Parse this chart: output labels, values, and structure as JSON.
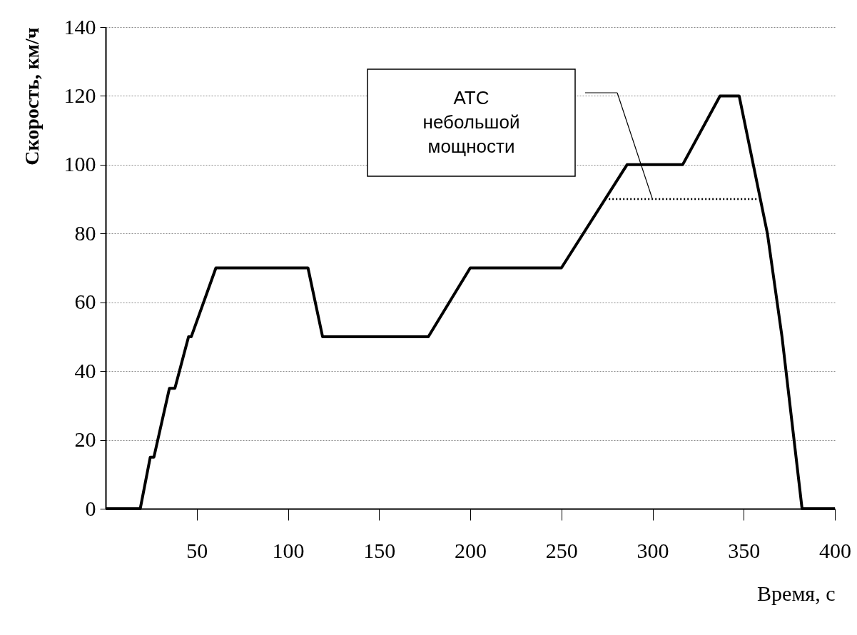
{
  "chart_data": {
    "type": "line",
    "xlabel": "Время, с",
    "ylabel": "Скорость, км/ч",
    "xlim": [
      0,
      400
    ],
    "xticks": [
      50,
      100,
      150,
      200,
      250,
      300,
      350,
      400
    ],
    "ylim": [
      0,
      140
    ],
    "yticks": [
      0,
      20,
      40,
      60,
      80,
      100,
      120,
      140
    ],
    "grid": "y",
    "marker": "none",
    "series": [
      {
        "color": "#000000",
        "line_style": "solid",
        "x": [
          0,
          19,
          24.5,
          26.5,
          35,
          38,
          45.5,
          47,
          60.5,
          111,
          119,
          177,
          200,
          250,
          286,
          316.5,
          337,
          347.5,
          363,
          371,
          382,
          400
        ],
        "values": [
          0,
          0,
          15,
          15,
          35,
          35,
          50,
          50,
          70,
          70,
          50,
          50,
          70,
          70,
          100,
          100,
          120,
          120,
          80,
          50,
          0,
          0
        ]
      },
      {
        "name": "АТС небольшой мощности",
        "color": "#000000",
        "line_style": "dotted",
        "x": [
          276,
          358
        ],
        "values": [
          90,
          90
        ]
      }
    ]
  }
}
